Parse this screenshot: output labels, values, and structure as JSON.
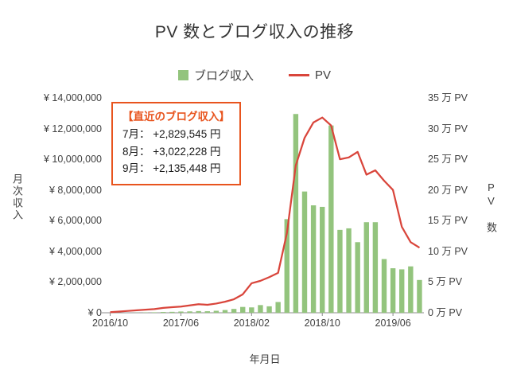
{
  "title": "PV 数とブログ収入の推移",
  "legend": [
    {
      "label": "ブログ収入",
      "type": "bar",
      "color": "#93C47D"
    },
    {
      "label": "PV",
      "type": "line",
      "color": "#D9453B"
    }
  ],
  "annotation": {
    "title": "【直近のブログ収入】",
    "items": [
      "7月： +2,829,545 円",
      "8月： +3,022,228 円",
      "9月： +2,135,448 円"
    ],
    "border_color": "#E8541E"
  },
  "chart_data": {
    "type": "combo-bar-line",
    "x_axis_title": "年月日",
    "grid": false,
    "legend_position": "top",
    "x": [
      "2016/10",
      "2016/11",
      "2016/12",
      "2017/01",
      "2017/02",
      "2017/03",
      "2017/04",
      "2017/05",
      "2017/06",
      "2017/07",
      "2017/08",
      "2017/09",
      "2017/10",
      "2017/11",
      "2017/12",
      "2018/01",
      "2018/02",
      "2018/03",
      "2018/04",
      "2018/05",
      "2018/06",
      "2018/07",
      "2018/08",
      "2018/09",
      "2018/10",
      "2018/11",
      "2018/12",
      "2019/01",
      "2019/02",
      "2019/03",
      "2019/04",
      "2019/05",
      "2019/06",
      "2019/07",
      "2019/08",
      "2019/09"
    ],
    "x_tick_indices": [
      0,
      8,
      16,
      24,
      32
    ],
    "x_tick_labels": [
      "2016/10",
      "2017/06",
      "2018/02",
      "2018/10",
      "2019/06"
    ],
    "left_axis": {
      "title": "月次収入",
      "min": 0,
      "max": 14000000,
      "step": 2000000,
      "tick_labels": [
        "¥ 14,000,000",
        "¥ 12,000,000",
        "¥ 10,000,000",
        "¥ 8,000,000",
        "¥ 6,000,000",
        "¥ 4,000,000",
        "¥ 2,000,000",
        "¥ 0"
      ]
    },
    "right_axis": {
      "title": "PV 数",
      "min": 0,
      "max": 35,
      "step": 5,
      "tick_labels": [
        "35 万 PV",
        "30 万 PV",
        "25 万 PV",
        "20 万 PV",
        "15 万 PV",
        "10 万 PV",
        "5 万 PV",
        "0 万 PV"
      ]
    },
    "series": [
      {
        "name": "ブログ収入",
        "type": "bar",
        "axis": "left",
        "color": "#93C47D",
        "values": [
          0,
          0,
          0,
          10000,
          20000,
          30000,
          50000,
          60000,
          80000,
          90000,
          110000,
          100000,
          130000,
          180000,
          250000,
          380000,
          350000,
          500000,
          420000,
          700000,
          6100000,
          12950000,
          7900000,
          7000000,
          6900000,
          12200000,
          5400000,
          5500000,
          4600000,
          5900000,
          5900000,
          3500000,
          2900000,
          2829545,
          3022228,
          2135448
        ]
      },
      {
        "name": "PV",
        "type": "line",
        "axis": "right",
        "color": "#D9453B",
        "values": [
          0.1,
          0.2,
          0.3,
          0.4,
          0.5,
          0.6,
          0.8,
          0.9,
          1.0,
          1.2,
          1.4,
          1.3,
          1.5,
          1.8,
          2.2,
          3.0,
          4.8,
          5.2,
          5.8,
          6.5,
          13.0,
          24.0,
          28.5,
          31.0,
          31.8,
          30.5,
          25.0,
          25.3,
          26.2,
          22.5,
          23.2,
          21.5,
          20.0,
          14.0,
          11.5,
          10.6
        ]
      }
    ]
  }
}
